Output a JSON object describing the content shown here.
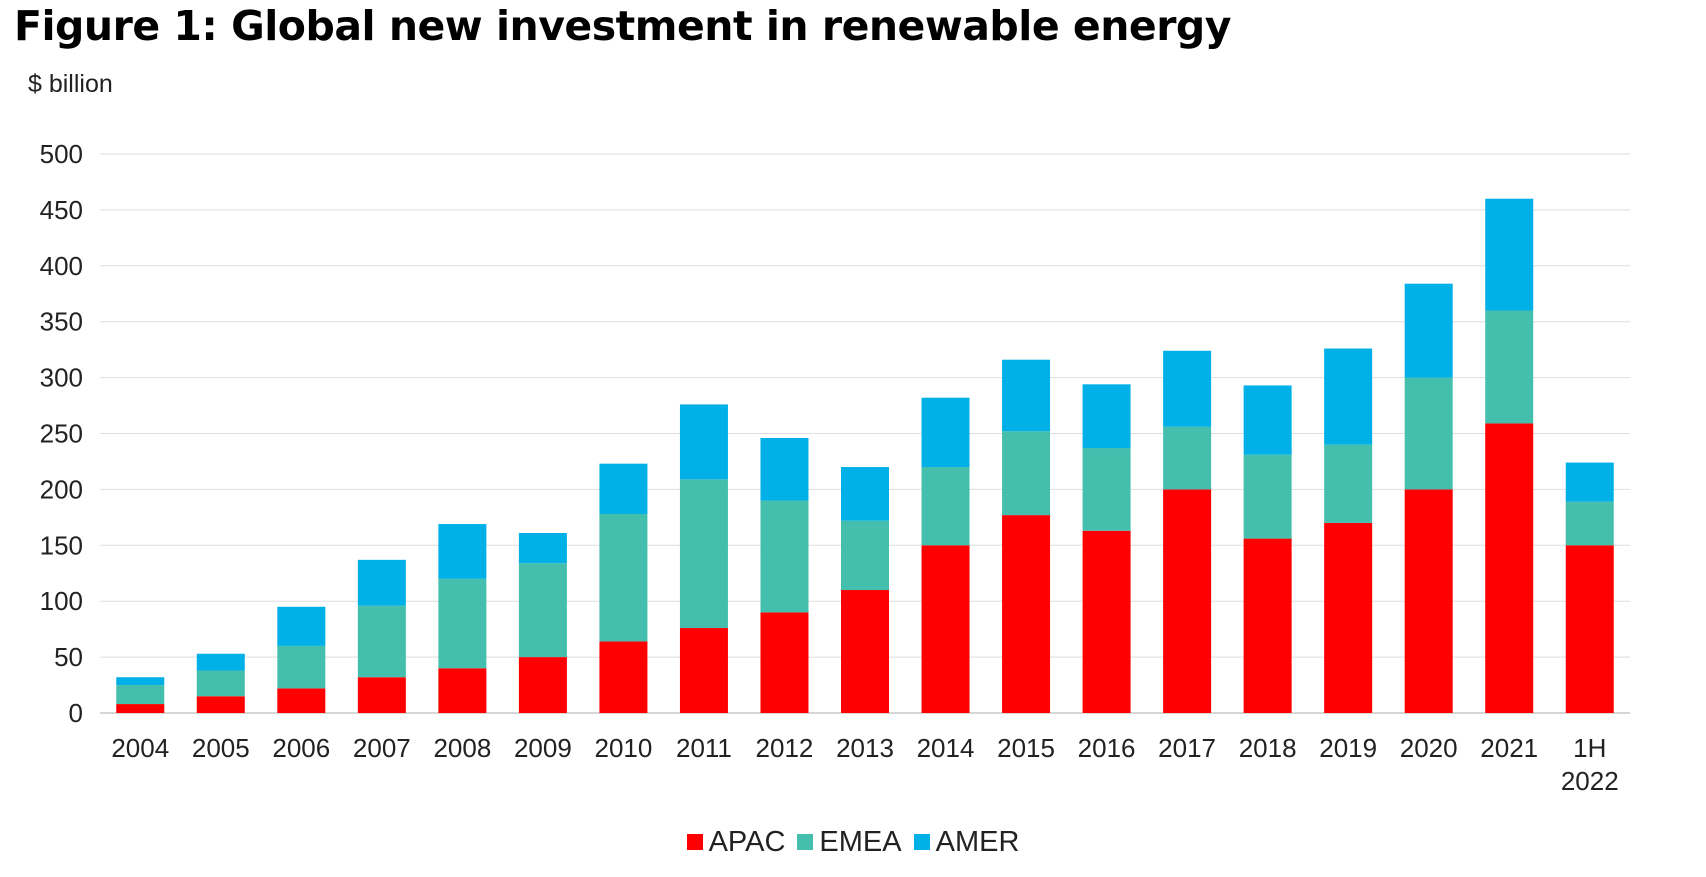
{
  "chart_data": {
    "type": "bar",
    "stacked": true,
    "title": "Figure 1: Global new investment in renewable energy",
    "ylabel": "$ billion",
    "xlabel": "",
    "ylim": [
      0,
      500
    ],
    "yticks": [
      0,
      50,
      100,
      150,
      200,
      250,
      300,
      350,
      400,
      450,
      500
    ],
    "grid": true,
    "legend_position": "bottom",
    "categories": [
      "2004",
      "2005",
      "2006",
      "2007",
      "2008",
      "2009",
      "2010",
      "2011",
      "2012",
      "2013",
      "2014",
      "2015",
      "2016",
      "2017",
      "2018",
      "2019",
      "2020",
      "2021",
      "1H 2022"
    ],
    "series": [
      {
        "name": "APAC",
        "color": "#ff0000",
        "values": [
          8,
          15,
          22,
          32,
          40,
          50,
          64,
          76,
          90,
          110,
          150,
          177,
          163,
          200,
          156,
          170,
          200,
          259,
          150
        ]
      },
      {
        "name": "EMEA",
        "color": "#44bfad",
        "values": [
          17,
          23,
          38,
          64,
          80,
          84,
          114,
          133,
          100,
          62,
          70,
          75,
          74,
          56,
          75,
          70,
          100,
          101,
          39
        ]
      },
      {
        "name": "AMER",
        "color": "#00b0e6",
        "values": [
          7,
          15,
          35,
          41,
          49,
          27,
          45,
          67,
          56,
          48,
          62,
          64,
          57,
          68,
          62,
          86,
          84,
          100,
          35
        ]
      }
    ]
  }
}
